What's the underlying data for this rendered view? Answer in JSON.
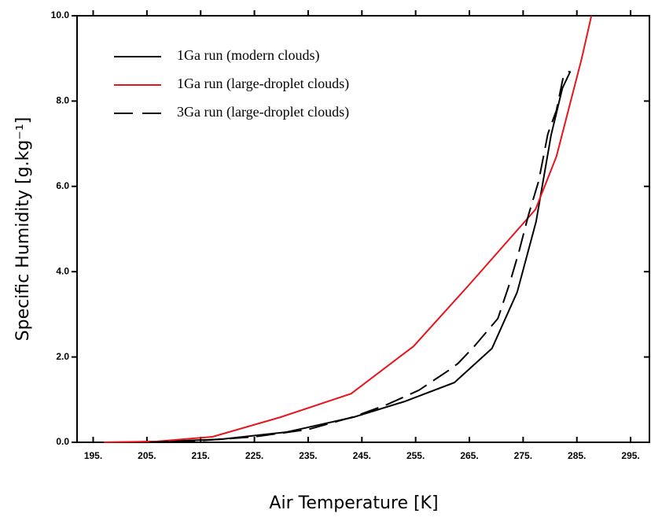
{
  "chart_data": {
    "type": "line",
    "xlabel": "Air Temperature [K]",
    "ylabel": "Specific Humidity [g.kg⁻¹]",
    "xlim": [
      192,
      298.5
    ],
    "ylim": [
      0,
      10
    ],
    "xticks": [
      {
        "value": 195,
        "label": "195."
      },
      {
        "value": 205,
        "label": "205."
      },
      {
        "value": 215,
        "label": "215."
      },
      {
        "value": 225,
        "label": "225."
      },
      {
        "value": 235,
        "label": "235."
      },
      {
        "value": 245,
        "label": "245."
      },
      {
        "value": 255,
        "label": "255."
      },
      {
        "value": 265,
        "label": "265."
      },
      {
        "value": 275,
        "label": "275."
      },
      {
        "value": 285,
        "label": "285."
      },
      {
        "value": 295,
        "label": "295."
      }
    ],
    "yticks": [
      {
        "value": 0,
        "label": "0.0"
      },
      {
        "value": 2,
        "label": "2.0"
      },
      {
        "value": 4,
        "label": "4.0"
      },
      {
        "value": 6,
        "label": "6.0"
      },
      {
        "value": 8,
        "label": "8.0"
      },
      {
        "value": 10,
        "label": "10.0"
      }
    ],
    "legend": "upper left",
    "series": [
      {
        "name": "1Ga run (modern clouds)",
        "color": "#000000",
        "line_style": "solid",
        "x": [
          199.6,
          208.4,
          218.6,
          231,
          243.5,
          253,
          262.2,
          269.2,
          273.9,
          277.4,
          280.2,
          282.3,
          283.8
        ],
        "values": [
          0,
          0.02,
          0.07,
          0.24,
          0.59,
          0.96,
          1.4,
          2.2,
          3.52,
          5.17,
          7.2,
          8.3,
          8.7
        ]
      },
      {
        "name": "1Ga run (large-droplet clouds)",
        "color": "#e8141c",
        "line_style": "solid",
        "x": [
          197,
          206.9,
          217.2,
          229.9,
          243,
          254.6,
          265,
          277.3,
          281.2,
          285.9,
          287.7
        ],
        "values": [
          0,
          0.02,
          0.13,
          0.59,
          1.14,
          2.25,
          3.7,
          5.46,
          6.7,
          9.0,
          10
        ]
      },
      {
        "name": "3Ga run (large-droplet clouds)",
        "color": "#000000",
        "line_style": "dashed",
        "x": [
          205.5,
          215,
          225,
          235,
          243.5,
          249.6,
          255.6,
          261.3,
          262.9,
          265.9,
          270.3,
          272.5,
          274.2,
          276,
          277.9,
          279.6,
          281.2,
          282.4,
          283.6
        ],
        "values": [
          0,
          0.04,
          0.13,
          0.3,
          0.6,
          0.88,
          1.22,
          1.7,
          1.85,
          2.25,
          2.9,
          3.73,
          4.46,
          5.33,
          6.13,
          7.23,
          7.78,
          8.52,
          8.7
        ]
      }
    ]
  }
}
